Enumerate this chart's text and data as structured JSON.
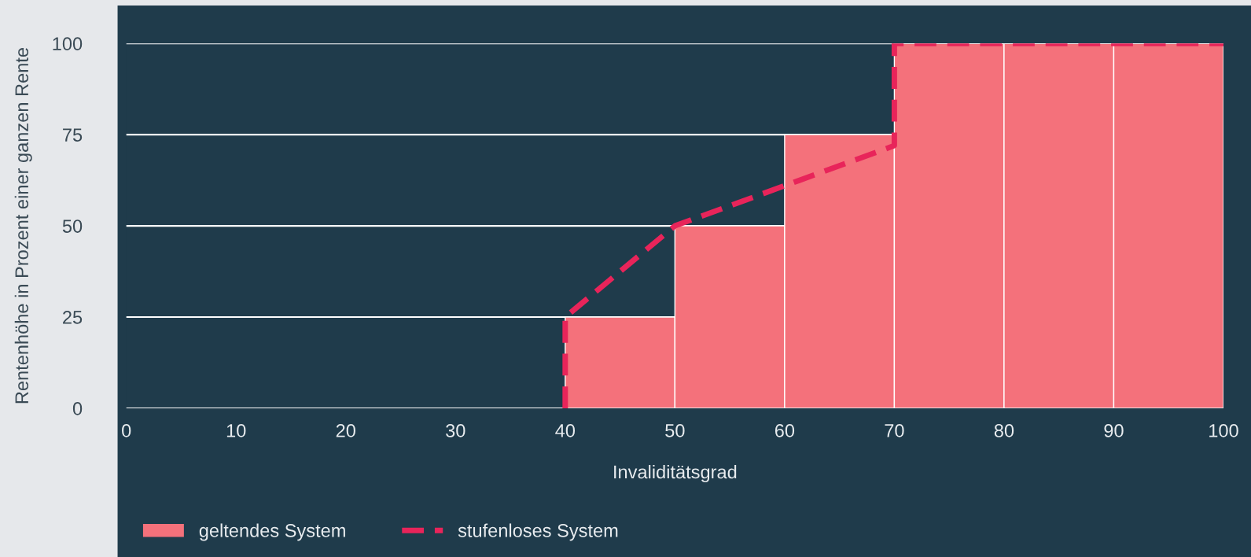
{
  "chart_data": {
    "type": "histogram",
    "xlabel": "Invaliditätsgrad",
    "ylabel": "Rentenhöhe in Prozent einer ganzen Rente",
    "bins": [
      40,
      50,
      60,
      70,
      80,
      90,
      100
    ],
    "series": [
      {
        "name": "geltendes System",
        "color": "#f4717b",
        "values": [
          25,
          50,
          75,
          100,
          100,
          100
        ]
      },
      {
        "name": "stufenloses System",
        "type": "line",
        "color": "#e8245a",
        "line_style": "dashed",
        "x": [
          40,
          40,
          50,
          60,
          70,
          70,
          100
        ],
        "values": [
          0,
          25,
          50,
          61,
          72,
          100,
          100
        ]
      }
    ],
    "xlim": [
      0,
      100
    ],
    "ylim": [
      0,
      100
    ],
    "xticks": [
      0,
      10,
      20,
      30,
      40,
      50,
      60,
      70,
      80,
      90,
      100
    ],
    "yticks": [
      0,
      25,
      50,
      75,
      100
    ],
    "grid": "y",
    "legend": "bottom left"
  }
}
